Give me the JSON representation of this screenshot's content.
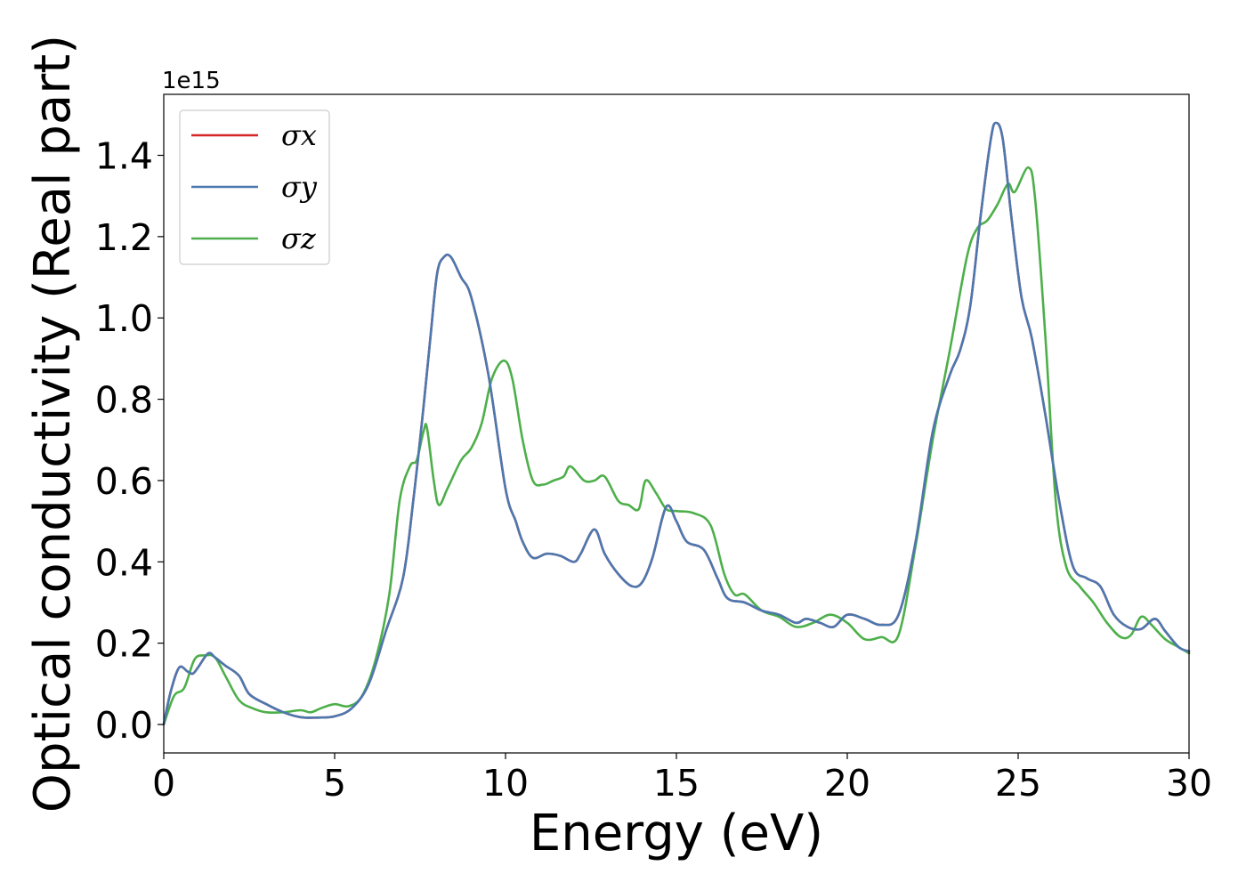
{
  "chart_data": {
    "type": "line",
    "xlabel": "Energy (eV)",
    "ylabel": "Optical conductivity (Real part)",
    "y_offset_label": "1e15",
    "xlim": [
      0,
      30
    ],
    "ylim": [
      -0.07,
      1.55
    ],
    "x_ticks": [
      0,
      5,
      10,
      15,
      20,
      25,
      30
    ],
    "y_ticks": [
      0.0,
      0.2,
      0.4,
      0.6,
      0.8,
      1.0,
      1.2,
      1.4
    ],
    "x_tick_labels": [
      "0",
      "5",
      "10",
      "15",
      "20",
      "25",
      "30"
    ],
    "y_tick_labels": [
      "0.0",
      "0.2",
      "0.4",
      "0.6",
      "0.8",
      "1.0",
      "1.2",
      "1.4"
    ],
    "grid": false,
    "legend_position": "top-left",
    "series": [
      {
        "name": "σx",
        "color": "#d62728",
        "points": [
          [
            0,
            0
          ],
          [
            0.2,
            0.08
          ],
          [
            0.45,
            0.14
          ],
          [
            0.7,
            0.13
          ],
          [
            0.85,
            0.125
          ],
          [
            1.0,
            0.14
          ],
          [
            1.3,
            0.175
          ],
          [
            1.5,
            0.165
          ],
          [
            1.8,
            0.145
          ],
          [
            2.2,
            0.12
          ],
          [
            2.5,
            0.075
          ],
          [
            3.0,
            0.05
          ],
          [
            3.5,
            0.03
          ],
          [
            4.0,
            0.018
          ],
          [
            4.5,
            0.017
          ],
          [
            5.0,
            0.02
          ],
          [
            5.5,
            0.04
          ],
          [
            6.0,
            0.1
          ],
          [
            6.5,
            0.23
          ],
          [
            7.0,
            0.36
          ],
          [
            7.3,
            0.55
          ],
          [
            7.6,
            0.78
          ],
          [
            7.8,
            0.95
          ],
          [
            8.0,
            1.11
          ],
          [
            8.2,
            1.15
          ],
          [
            8.4,
            1.15
          ],
          [
            8.7,
            1.1
          ],
          [
            9.0,
            1.05
          ],
          [
            9.5,
            0.86
          ],
          [
            10.0,
            0.58
          ],
          [
            10.3,
            0.5
          ],
          [
            10.5,
            0.45
          ],
          [
            10.8,
            0.41
          ],
          [
            11.2,
            0.42
          ],
          [
            11.6,
            0.415
          ],
          [
            12.0,
            0.4
          ],
          [
            12.2,
            0.42
          ],
          [
            12.6,
            0.48
          ],
          [
            12.9,
            0.42
          ],
          [
            13.3,
            0.37
          ],
          [
            13.7,
            0.34
          ],
          [
            14.0,
            0.35
          ],
          [
            14.3,
            0.41
          ],
          [
            14.7,
            0.535
          ],
          [
            15.0,
            0.5
          ],
          [
            15.3,
            0.45
          ],
          [
            15.8,
            0.43
          ],
          [
            16.2,
            0.36
          ],
          [
            16.5,
            0.31
          ],
          [
            17.0,
            0.3
          ],
          [
            17.5,
            0.28
          ],
          [
            18.0,
            0.27
          ],
          [
            18.5,
            0.25
          ],
          [
            18.8,
            0.26
          ],
          [
            19.2,
            0.25
          ],
          [
            19.6,
            0.24
          ],
          [
            20.0,
            0.27
          ],
          [
            20.5,
            0.26
          ],
          [
            21.0,
            0.245
          ],
          [
            21.5,
            0.27
          ],
          [
            22.0,
            0.45
          ],
          [
            22.5,
            0.72
          ],
          [
            23.0,
            0.86
          ],
          [
            23.3,
            0.92
          ],
          [
            23.6,
            1.03
          ],
          [
            23.9,
            1.25
          ],
          [
            24.2,
            1.44
          ],
          [
            24.35,
            1.48
          ],
          [
            24.55,
            1.44
          ],
          [
            24.8,
            1.25
          ],
          [
            25.1,
            1.05
          ],
          [
            25.4,
            0.95
          ],
          [
            25.8,
            0.76
          ],
          [
            26.2,
            0.55
          ],
          [
            26.6,
            0.39
          ],
          [
            27.0,
            0.36
          ],
          [
            27.4,
            0.34
          ],
          [
            27.8,
            0.27
          ],
          [
            28.2,
            0.24
          ],
          [
            28.6,
            0.235
          ],
          [
            29.0,
            0.26
          ],
          [
            29.3,
            0.23
          ],
          [
            29.7,
            0.19
          ],
          [
            30.0,
            0.18
          ]
        ]
      },
      {
        "name": "σy",
        "color": "#4c78b0",
        "points": [
          [
            0,
            0
          ],
          [
            0.2,
            0.08
          ],
          [
            0.45,
            0.14
          ],
          [
            0.7,
            0.13
          ],
          [
            0.85,
            0.125
          ],
          [
            1.0,
            0.14
          ],
          [
            1.3,
            0.175
          ],
          [
            1.5,
            0.165
          ],
          [
            1.8,
            0.145
          ],
          [
            2.2,
            0.12
          ],
          [
            2.5,
            0.075
          ],
          [
            3.0,
            0.05
          ],
          [
            3.5,
            0.03
          ],
          [
            4.0,
            0.018
          ],
          [
            4.5,
            0.017
          ],
          [
            5.0,
            0.02
          ],
          [
            5.5,
            0.04
          ],
          [
            6.0,
            0.1
          ],
          [
            6.5,
            0.23
          ],
          [
            7.0,
            0.36
          ],
          [
            7.3,
            0.55
          ],
          [
            7.6,
            0.78
          ],
          [
            7.8,
            0.95
          ],
          [
            8.0,
            1.11
          ],
          [
            8.2,
            1.15
          ],
          [
            8.4,
            1.15
          ],
          [
            8.7,
            1.1
          ],
          [
            9.0,
            1.05
          ],
          [
            9.5,
            0.86
          ],
          [
            10.0,
            0.58
          ],
          [
            10.3,
            0.5
          ],
          [
            10.5,
            0.45
          ],
          [
            10.8,
            0.41
          ],
          [
            11.2,
            0.42
          ],
          [
            11.6,
            0.415
          ],
          [
            12.0,
            0.4
          ],
          [
            12.2,
            0.42
          ],
          [
            12.6,
            0.48
          ],
          [
            12.9,
            0.42
          ],
          [
            13.3,
            0.37
          ],
          [
            13.7,
            0.34
          ],
          [
            14.0,
            0.35
          ],
          [
            14.3,
            0.41
          ],
          [
            14.7,
            0.535
          ],
          [
            15.0,
            0.5
          ],
          [
            15.3,
            0.45
          ],
          [
            15.8,
            0.43
          ],
          [
            16.2,
            0.36
          ],
          [
            16.5,
            0.31
          ],
          [
            17.0,
            0.3
          ],
          [
            17.5,
            0.28
          ],
          [
            18.0,
            0.27
          ],
          [
            18.5,
            0.25
          ],
          [
            18.8,
            0.26
          ],
          [
            19.2,
            0.25
          ],
          [
            19.6,
            0.24
          ],
          [
            20.0,
            0.27
          ],
          [
            20.5,
            0.26
          ],
          [
            21.0,
            0.245
          ],
          [
            21.5,
            0.27
          ],
          [
            22.0,
            0.45
          ],
          [
            22.5,
            0.72
          ],
          [
            23.0,
            0.86
          ],
          [
            23.3,
            0.92
          ],
          [
            23.6,
            1.03
          ],
          [
            23.9,
            1.25
          ],
          [
            24.2,
            1.44
          ],
          [
            24.35,
            1.48
          ],
          [
            24.55,
            1.44
          ],
          [
            24.8,
            1.25
          ],
          [
            25.1,
            1.05
          ],
          [
            25.4,
            0.95
          ],
          [
            25.8,
            0.76
          ],
          [
            26.2,
            0.55
          ],
          [
            26.6,
            0.39
          ],
          [
            27.0,
            0.36
          ],
          [
            27.4,
            0.34
          ],
          [
            27.8,
            0.27
          ],
          [
            28.2,
            0.24
          ],
          [
            28.6,
            0.235
          ],
          [
            29.0,
            0.26
          ],
          [
            29.3,
            0.23
          ],
          [
            29.7,
            0.19
          ],
          [
            30.0,
            0.18
          ]
        ]
      },
      {
        "name": "σz",
        "color": "#4daf4a",
        "points": [
          [
            0,
            0
          ],
          [
            0.3,
            0.07
          ],
          [
            0.6,
            0.09
          ],
          [
            0.9,
            0.16
          ],
          [
            1.2,
            0.17
          ],
          [
            1.5,
            0.165
          ],
          [
            1.8,
            0.12
          ],
          [
            2.2,
            0.06
          ],
          [
            2.6,
            0.04
          ],
          [
            3.0,
            0.03
          ],
          [
            3.5,
            0.03
          ],
          [
            4.0,
            0.035
          ],
          [
            4.3,
            0.03
          ],
          [
            4.6,
            0.04
          ],
          [
            5.0,
            0.05
          ],
          [
            5.4,
            0.045
          ],
          [
            5.8,
            0.07
          ],
          [
            6.2,
            0.16
          ],
          [
            6.6,
            0.32
          ],
          [
            6.9,
            0.55
          ],
          [
            7.2,
            0.635
          ],
          [
            7.4,
            0.65
          ],
          [
            7.6,
            0.72
          ],
          [
            7.7,
            0.73
          ],
          [
            7.9,
            0.6
          ],
          [
            8.05,
            0.54
          ],
          [
            8.3,
            0.58
          ],
          [
            8.7,
            0.65
          ],
          [
            9.0,
            0.68
          ],
          [
            9.3,
            0.74
          ],
          [
            9.6,
            0.85
          ],
          [
            9.95,
            0.895
          ],
          [
            10.2,
            0.85
          ],
          [
            10.5,
            0.7
          ],
          [
            10.8,
            0.6
          ],
          [
            11.1,
            0.59
          ],
          [
            11.4,
            0.6
          ],
          [
            11.7,
            0.61
          ],
          [
            11.9,
            0.635
          ],
          [
            12.3,
            0.6
          ],
          [
            12.6,
            0.6
          ],
          [
            12.9,
            0.61
          ],
          [
            13.3,
            0.55
          ],
          [
            13.6,
            0.54
          ],
          [
            13.9,
            0.53
          ],
          [
            14.1,
            0.6
          ],
          [
            14.4,
            0.57
          ],
          [
            14.7,
            0.53
          ],
          [
            15.0,
            0.525
          ],
          [
            15.5,
            0.52
          ],
          [
            16.0,
            0.49
          ],
          [
            16.4,
            0.37
          ],
          [
            16.7,
            0.32
          ],
          [
            17.0,
            0.32
          ],
          [
            17.5,
            0.28
          ],
          [
            18.0,
            0.265
          ],
          [
            18.5,
            0.24
          ],
          [
            19.0,
            0.25
          ],
          [
            19.5,
            0.27
          ],
          [
            20.0,
            0.25
          ],
          [
            20.5,
            0.21
          ],
          [
            21.0,
            0.215
          ],
          [
            21.5,
            0.22
          ],
          [
            22.0,
            0.44
          ],
          [
            22.5,
            0.7
          ],
          [
            23.0,
            0.92
          ],
          [
            23.5,
            1.15
          ],
          [
            23.8,
            1.22
          ],
          [
            24.1,
            1.24
          ],
          [
            24.4,
            1.28
          ],
          [
            24.7,
            1.33
          ],
          [
            24.9,
            1.31
          ],
          [
            25.3,
            1.37
          ],
          [
            25.5,
            1.29
          ],
          [
            25.8,
            0.95
          ],
          [
            26.1,
            0.55
          ],
          [
            26.4,
            0.39
          ],
          [
            26.8,
            0.34
          ],
          [
            27.2,
            0.3
          ],
          [
            27.6,
            0.25
          ],
          [
            28.0,
            0.215
          ],
          [
            28.3,
            0.22
          ],
          [
            28.6,
            0.265
          ],
          [
            28.9,
            0.245
          ],
          [
            29.3,
            0.21
          ],
          [
            29.7,
            0.19
          ],
          [
            30.0,
            0.175
          ]
        ]
      }
    ]
  }
}
